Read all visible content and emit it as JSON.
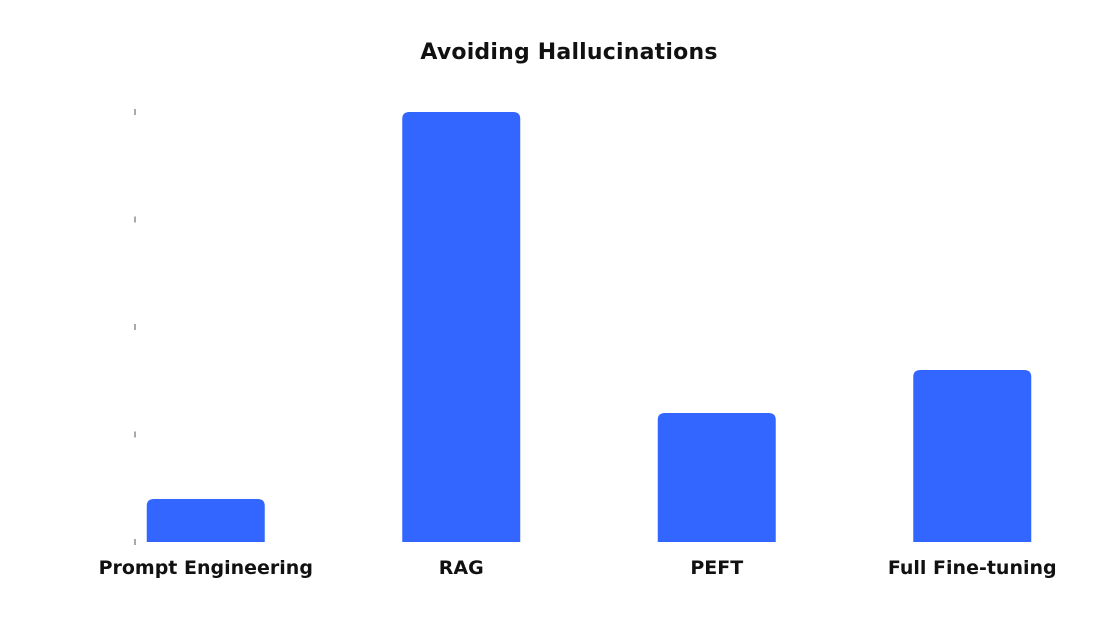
{
  "chart_data": {
    "type": "bar",
    "title": "Avoiding Hallucinations",
    "xlabel": "",
    "ylabel": "",
    "categories": [
      "Prompt Engineering",
      "RAG",
      "PEFT",
      "Full Fine-tuning"
    ],
    "values": [
      1,
      10,
      3,
      4
    ],
    "ylim": [
      0,
      10
    ],
    "y_tick_values": [
      0,
      2.5,
      5,
      7.5,
      10
    ],
    "y_tick_labels_shown": false,
    "grid": false,
    "legend": "none",
    "bar_color": "#3366ff"
  }
}
